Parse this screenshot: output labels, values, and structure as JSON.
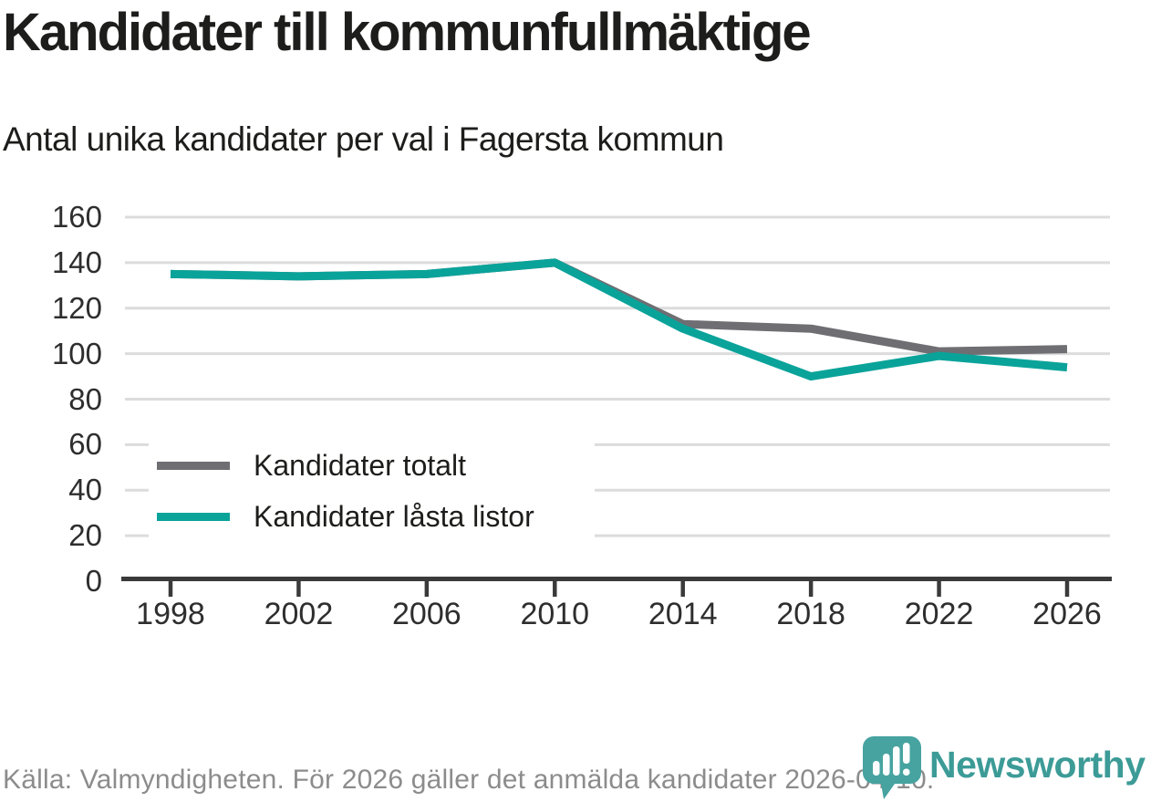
{
  "chart_data": {
    "type": "line",
    "title": "Kandidater till kommunfullmäktige",
    "subtitle": "Antal unika kandidater per val i Fagersta kommun",
    "categories": [
      "1998",
      "2002",
      "2006",
      "2010",
      "2014",
      "2018",
      "2022",
      "2026"
    ],
    "series": [
      {
        "name": "Kandidater totalt",
        "color": "#6e6e73",
        "values": [
          135,
          134,
          135,
          140,
          113,
          111,
          101,
          102
        ]
      },
      {
        "name": "Kandidater låsta listor",
        "color": "#0aa39a",
        "values": [
          135,
          134,
          135,
          140,
          111,
          90,
          99,
          94
        ]
      }
    ],
    "yticks": [
      0,
      20,
      40,
      60,
      80,
      100,
      120,
      140,
      160
    ],
    "ylim": [
      0,
      160
    ],
    "xlabel": "",
    "ylabel": "",
    "grid": "horizontal-only",
    "legend_position": "inside-bottom-left"
  },
  "footer": {
    "source": "Källa: Valmyndigheten. För 2026 gäller det anmälda kandidater 2026-04-10."
  },
  "brand": {
    "name": "Newsworthy",
    "icon_color": "#46a3a0",
    "text_color": "#3c9b97"
  },
  "colors": {
    "grid": "#dcdcdc",
    "axis": "#3a3a3a",
    "text_dark": "#1d1d1b",
    "tick_label": "#2e2e2e",
    "source_text": "#8c8c8c"
  }
}
